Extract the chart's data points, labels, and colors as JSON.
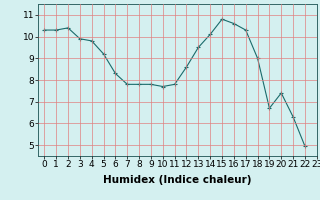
{
  "x": [
    0,
    1,
    2,
    3,
    4,
    5,
    6,
    7,
    8,
    9,
    10,
    11,
    12,
    13,
    14,
    15,
    16,
    17,
    18,
    19,
    20,
    21,
    22
  ],
  "y": [
    10.3,
    10.3,
    10.4,
    9.9,
    9.8,
    9.2,
    8.3,
    7.8,
    7.8,
    7.8,
    7.7,
    7.8,
    8.6,
    9.5,
    10.1,
    10.8,
    10.6,
    10.3,
    9.0,
    6.7,
    7.4,
    6.3,
    4.95
  ],
  "line_color": "#1a6b6b",
  "marker": "+",
  "marker_size": 3,
  "bg_color": "#d4f0f0",
  "grid_color": "#e08080",
  "xlabel": "Humidex (Indice chaleur)",
  "ylim": [
    4.5,
    11.5
  ],
  "xlim": [
    -0.5,
    23.0
  ],
  "yticks": [
    5,
    6,
    7,
    8,
    9,
    10,
    11
  ],
  "xticks": [
    0,
    1,
    2,
    3,
    4,
    5,
    6,
    7,
    8,
    9,
    10,
    11,
    12,
    13,
    14,
    15,
    16,
    17,
    18,
    19,
    20,
    21,
    22,
    23
  ],
  "tick_font_size": 6.5,
  "xlabel_font_size": 7.5
}
